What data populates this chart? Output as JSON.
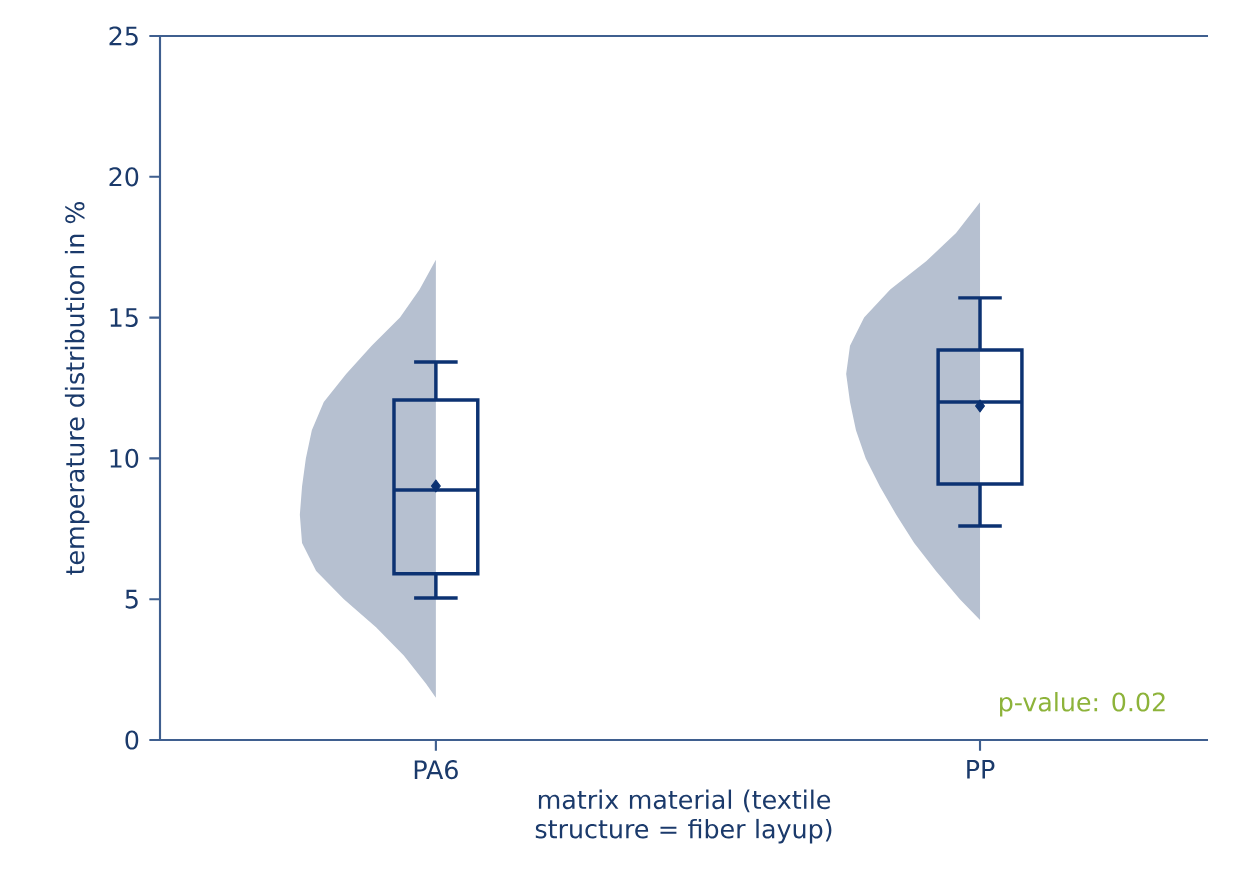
{
  "chart_data": {
    "type": "box",
    "xlabel": "matrix material (textile structure = fiber layup)",
    "ylabel": "temperature distribution in %",
    "categories": [
      "PA6",
      "PP"
    ],
    "ylim": [
      0,
      25
    ],
    "yticks": [
      0,
      5,
      10,
      15,
      20,
      25
    ],
    "series": [
      {
        "color": "#0c3272",
        "boxes": [
          {
            "low": 5.04,
            "q1": 5.9,
            "median": 8.88,
            "q3": 12.07,
            "high": 13.42,
            "mean": 9.02
          },
          {
            "low": 7.6,
            "q1": 9.09,
            "median": 12.0,
            "q3": 13.85,
            "high": 15.7,
            "mean": 11.86
          }
        ]
      }
    ],
    "annotations": [
      "p-value: 0.02"
    ]
  }
}
